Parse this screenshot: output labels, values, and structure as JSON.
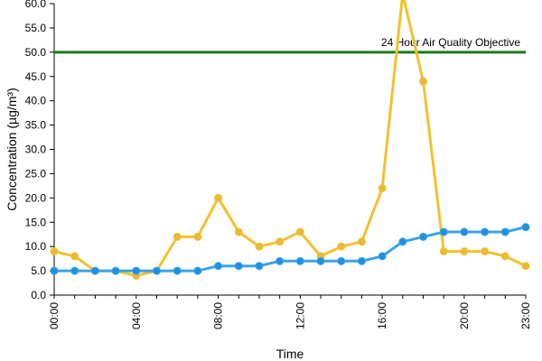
{
  "chart_data": {
    "type": "line",
    "xlabel": "Time",
    "ylabel": "Concentration (µg/m³)",
    "ylim": [
      0,
      60
    ],
    "y_ticks": [
      "0.0",
      "5.0",
      "10.0",
      "15.0",
      "20.0",
      "25.0",
      "30.0",
      "35.0",
      "40.0",
      "45.0",
      "50.0",
      "55.0",
      "60.0"
    ],
    "x_ticks": [
      "00:00",
      "04:00",
      "08:00",
      "12:00",
      "16:00",
      "20:00",
      "23:00"
    ],
    "x_tick_positions": [
      0,
      4,
      8,
      12,
      16,
      20,
      23
    ],
    "x_range": [
      0,
      23
    ],
    "grid": false,
    "reference_line": {
      "value": 50,
      "label": "24 Hour Air Quality Objective",
      "color": "#1a7a1a"
    },
    "series": [
      {
        "color": "#f2c12e",
        "marker_color": "#e8b93a",
        "x": [
          0,
          1,
          2,
          3,
          4,
          5,
          6,
          7,
          8,
          9,
          10,
          11,
          12,
          13,
          14,
          15,
          16,
          17,
          18,
          19,
          20,
          21,
          22,
          23
        ],
        "values": [
          9,
          8,
          5,
          5,
          4,
          5,
          12,
          12,
          20,
          13,
          10,
          11,
          13,
          8,
          10,
          11,
          22,
          62,
          44,
          9,
          9,
          9,
          8,
          6
        ]
      },
      {
        "color": "#3aa3e8",
        "marker_color": "#1f8fe0",
        "x": [
          0,
          1,
          2,
          3,
          4,
          5,
          6,
          7,
          8,
          9,
          10,
          11,
          12,
          13,
          14,
          15,
          16,
          17,
          18,
          19,
          20,
          21,
          22,
          23
        ],
        "values": [
          5,
          5,
          5,
          5,
          5,
          5,
          5,
          5,
          6,
          6,
          6,
          7,
          7,
          7,
          7,
          7,
          8,
          11,
          12,
          13,
          13,
          13,
          13,
          14
        ]
      }
    ]
  }
}
